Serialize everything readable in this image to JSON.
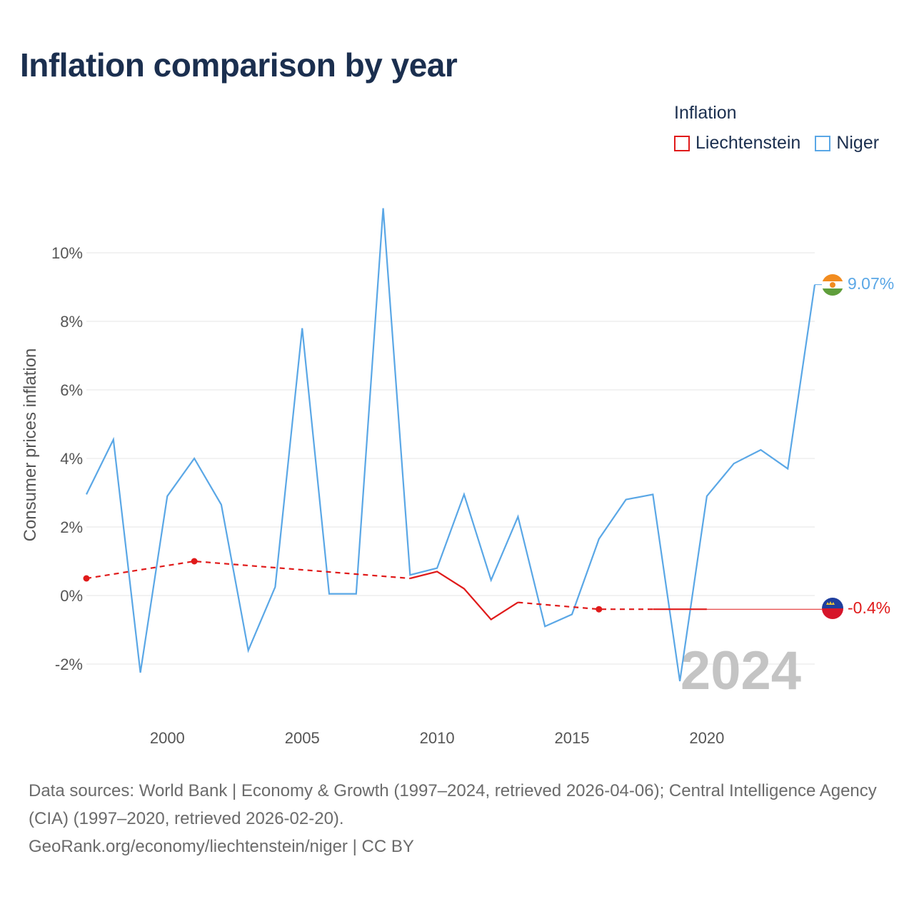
{
  "title": "Inflation comparison by year",
  "legend": {
    "title": "Inflation",
    "items": [
      {
        "label": "Liechtenstein",
        "color": "#e01a1a"
      },
      {
        "label": "Niger",
        "color": "#5aa7e6"
      }
    ]
  },
  "chart_data": {
    "type": "line",
    "title": "Inflation comparison by year",
    "ylabel": "Consumer prices inflation",
    "xlabel": "",
    "xlim": [
      1997,
      2024
    ],
    "ylim": [
      -3.5,
      11.5
    ],
    "x_ticks": [
      2000,
      2005,
      2010,
      2015,
      2020
    ],
    "x_tick_labels": [
      "2000",
      "2005",
      "2010",
      "2015",
      "2020"
    ],
    "y_ticks": [
      -2,
      0,
      2,
      4,
      6,
      8,
      10
    ],
    "y_tick_labels": [
      "-2%",
      "0%",
      "2%",
      "4%",
      "6%",
      "8%",
      "10%"
    ],
    "watermark": "2024",
    "series": [
      {
        "name": "Niger",
        "color": "#5aa7e6",
        "x": [
          1997,
          1998,
          1999,
          2000,
          2001,
          2002,
          2003,
          2004,
          2005,
          2006,
          2007,
          2008,
          2009,
          2010,
          2011,
          2012,
          2013,
          2014,
          2015,
          2016,
          2017,
          2018,
          2019,
          2020,
          2021,
          2022,
          2023,
          2024
        ],
        "values": [
          2.95,
          4.55,
          -2.25,
          2.9,
          4.0,
          2.65,
          -1.6,
          0.25,
          7.8,
          0.05,
          0.05,
          11.3,
          0.6,
          0.8,
          2.95,
          0.45,
          2.3,
          -0.9,
          -0.55,
          1.65,
          2.8,
          2.95,
          -2.5,
          2.9,
          3.85,
          4.25,
          3.7,
          9.07
        ],
        "end_label": "9.07%"
      },
      {
        "name": "Liechtenstein",
        "color": "#e01a1a",
        "solid_segments": [
          {
            "x": [
              2009,
              2010,
              2011,
              2012,
              2013
            ],
            "values": [
              0.5,
              0.7,
              0.2,
              -0.7,
              -0.2
            ]
          },
          {
            "x": [
              2018,
              2020
            ],
            "values": [
              -0.4,
              -0.4
            ]
          }
        ],
        "dashed_segments": [
          {
            "x": [
              1997,
              2001,
              2009
            ],
            "values": [
              0.5,
              1.0,
              0.5
            ]
          },
          {
            "x": [
              2013,
              2016,
              2018
            ],
            "values": [
              -0.2,
              -0.4,
              -0.4
            ]
          }
        ],
        "markers": {
          "x": [
            1997,
            2001,
            2016
          ],
          "values": [
            0.5,
            1.0,
            -0.4
          ]
        },
        "extension": {
          "x": [
            2020,
            2024
          ],
          "values": [
            -0.4,
            -0.4
          ]
        },
        "end_label": "-0.4%"
      }
    ]
  },
  "footer": {
    "line1": "Data sources: World Bank | Economy & Growth (1997–2024, retrieved 2026-04-06); Central Intelligence Agency (CIA) (1997–2020, retrieved 2026-02-20).",
    "line2": "GeoRank.org/economy/liechtenstein/niger | CC BY"
  }
}
